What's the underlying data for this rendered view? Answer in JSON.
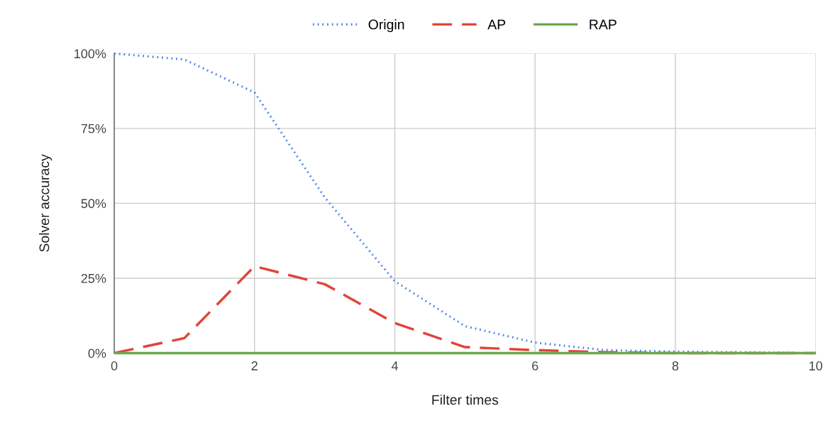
{
  "chart_data": {
    "type": "line",
    "xlabel": "Filter times",
    "ylabel": "Solver accuracy",
    "x": [
      0,
      1,
      2,
      3,
      4,
      5,
      6,
      7,
      8,
      9,
      10
    ],
    "series": [
      {
        "name": "Origin",
        "color": "#4a86e8",
        "line_style": "dotted",
        "values": [
          100,
          98,
          87,
          52,
          24,
          9,
          3.5,
          1,
          0.5,
          0.3,
          0
        ]
      },
      {
        "name": "AP",
        "color": "#e0443a",
        "line_style": "dashed",
        "values": [
          0,
          5,
          29,
          23,
          10,
          2,
          1,
          0.3,
          0,
          0,
          0
        ]
      },
      {
        "name": "RAP",
        "color": "#6aa84f",
        "line_style": "solid",
        "values": [
          0,
          0,
          0,
          0,
          0,
          0,
          0,
          0,
          0,
          0,
          0
        ]
      }
    ],
    "xlim": [
      0,
      10
    ],
    "xticks": [
      0,
      2,
      4,
      6,
      8,
      10
    ],
    "ylim": [
      0,
      100
    ],
    "yticks": [
      {
        "value": 0,
        "label": "0%"
      },
      {
        "value": 25,
        "label": "25%"
      },
      {
        "value": 50,
        "label": "50%"
      },
      {
        "value": 75,
        "label": "75%"
      },
      {
        "value": 100,
        "label": "100%"
      }
    ],
    "grid": true,
    "legend": "top"
  }
}
